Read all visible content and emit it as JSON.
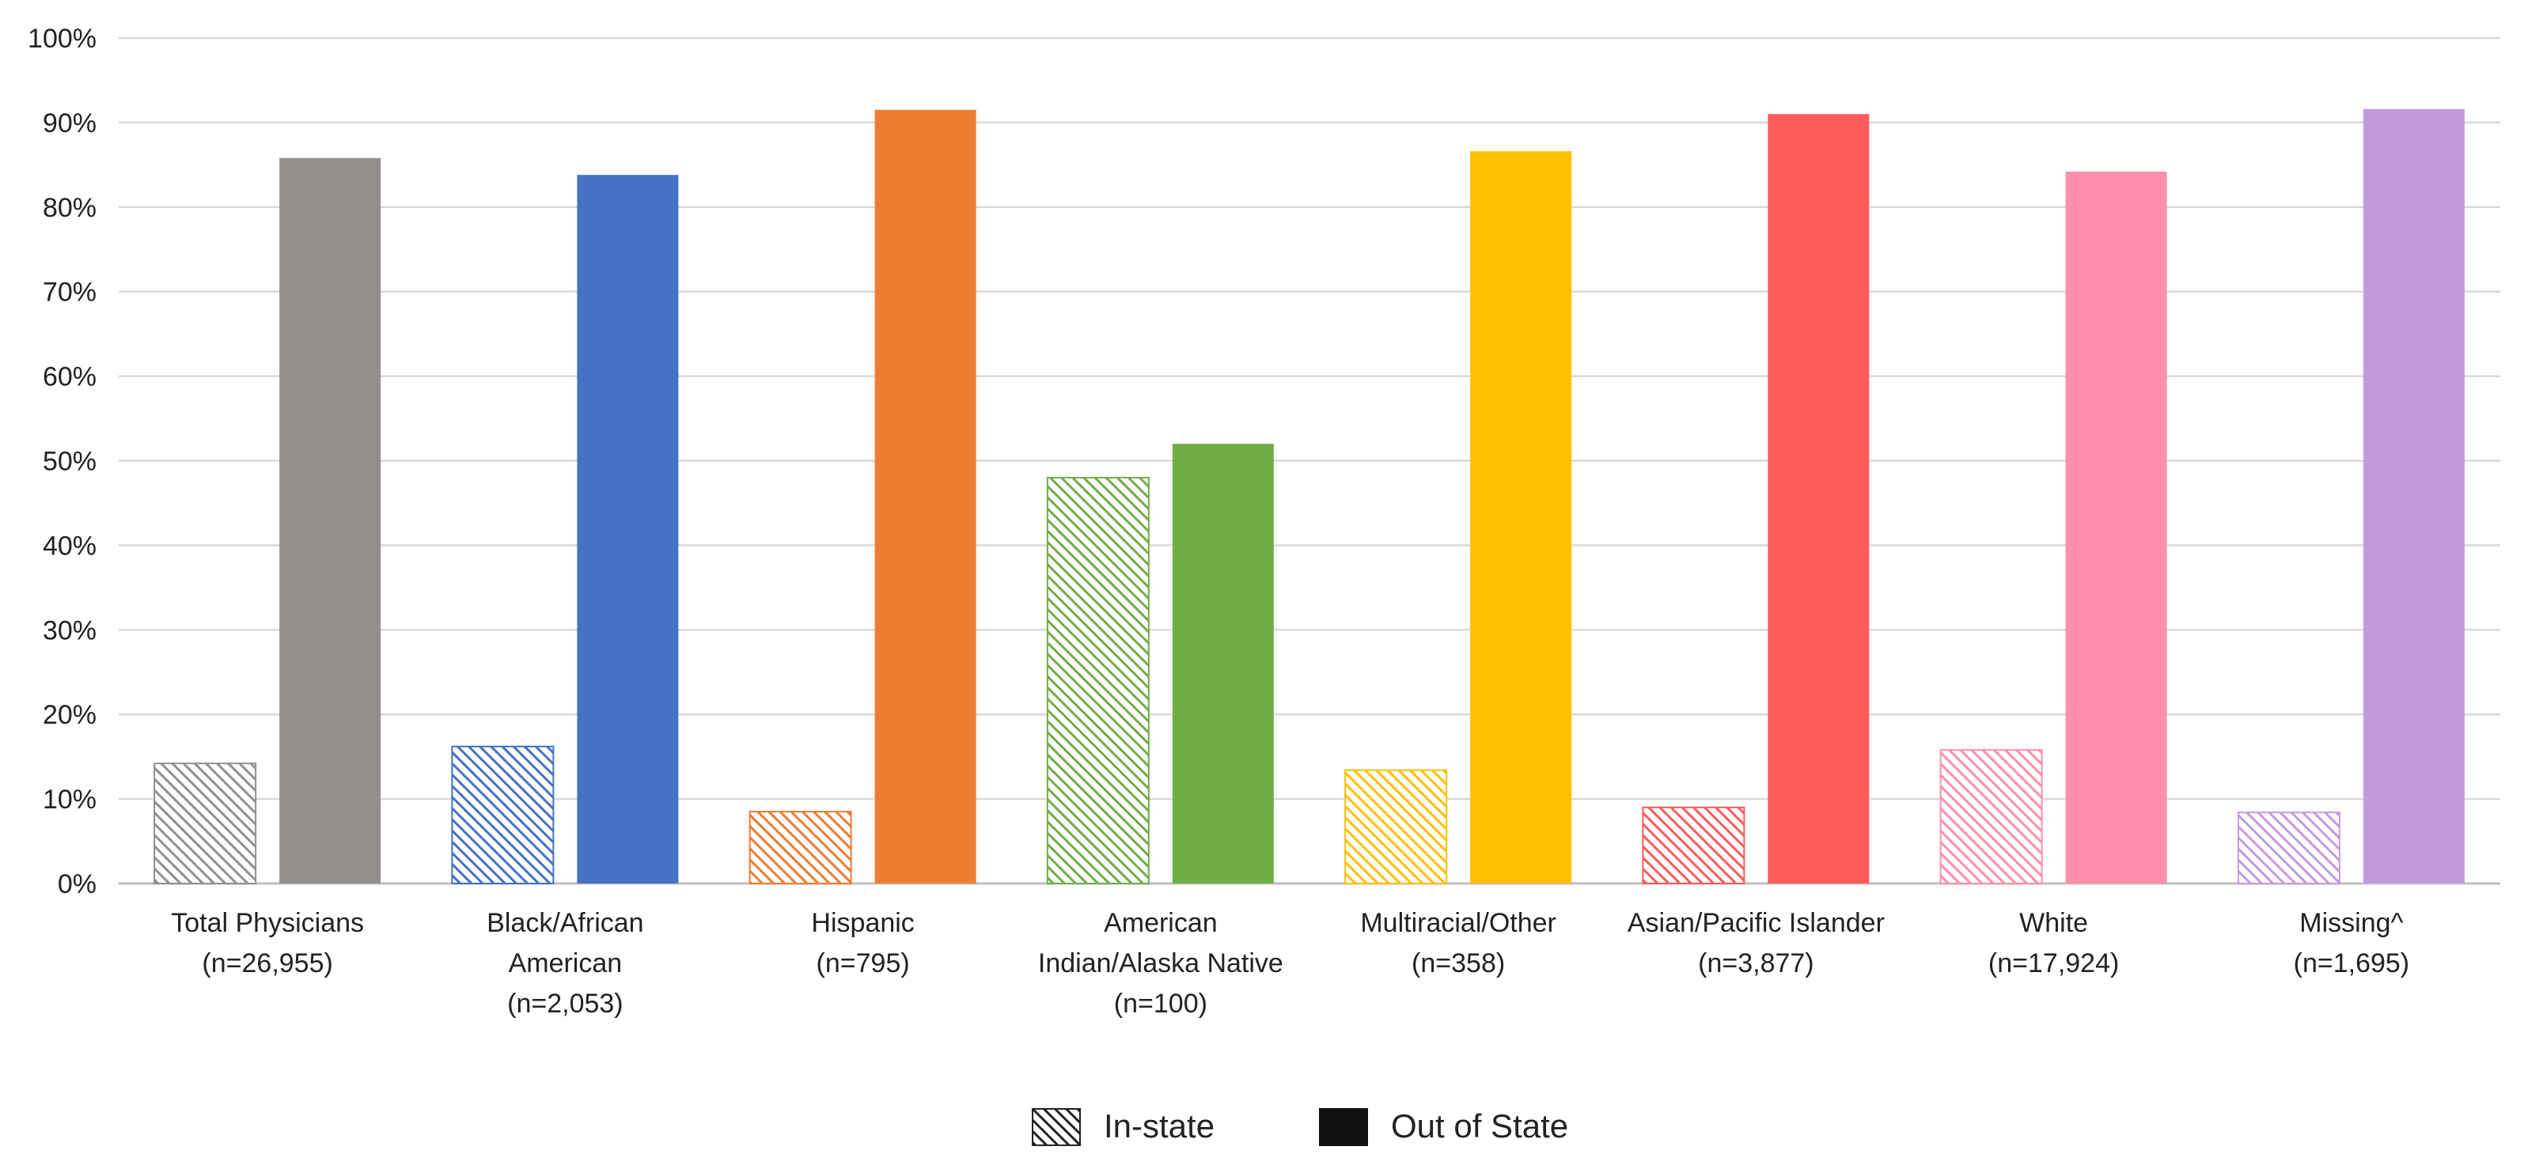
{
  "chart_data": {
    "type": "bar",
    "title": "",
    "xlabel": "",
    "ylabel": "",
    "ylim": [
      0,
      100
    ],
    "y_ticks": [
      0,
      10,
      20,
      30,
      40,
      50,
      60,
      70,
      80,
      90,
      100
    ],
    "y_tick_format": "{v}%",
    "grid": true,
    "legend_position": "bottom",
    "categories": [
      [
        "Total Physicians",
        "(n=26,955)"
      ],
      [
        "Black/African",
        "American",
        "(n=2,053)"
      ],
      [
        "Hispanic",
        "(n=795)"
      ],
      [
        "American",
        "Indian/Alaska Native",
        "(n=100)"
      ],
      [
        "Multiracial/Other",
        "(n=358)"
      ],
      [
        "Asian/Pacific Islander",
        "(n=3,877)"
      ],
      [
        "White",
        "(n=17,924)"
      ],
      [
        "Missing^",
        "(n=1,695)"
      ]
    ],
    "category_colors": [
      "#948F8C",
      "#4472C4",
      "#ED7D31",
      "#70AD47",
      "#FFC000",
      "#FF5B5B",
      "#FF8FAB",
      "#C49ADE"
    ],
    "series": [
      {
        "name": "In-state",
        "pattern": "diagonal-hatch",
        "values": [
          14.2,
          16.2,
          8.5,
          48.0,
          13.4,
          9.0,
          15.8,
          8.4
        ]
      },
      {
        "name": "Out of State",
        "pattern": "solid",
        "values": [
          85.8,
          83.8,
          91.5,
          52.0,
          86.6,
          91.0,
          84.2,
          91.6
        ]
      }
    ],
    "legend": [
      {
        "label": "In-state",
        "swatch": "hatch",
        "color": "#222222"
      },
      {
        "label": "Out of State",
        "swatch": "solid",
        "color": "#111111"
      }
    ]
  }
}
